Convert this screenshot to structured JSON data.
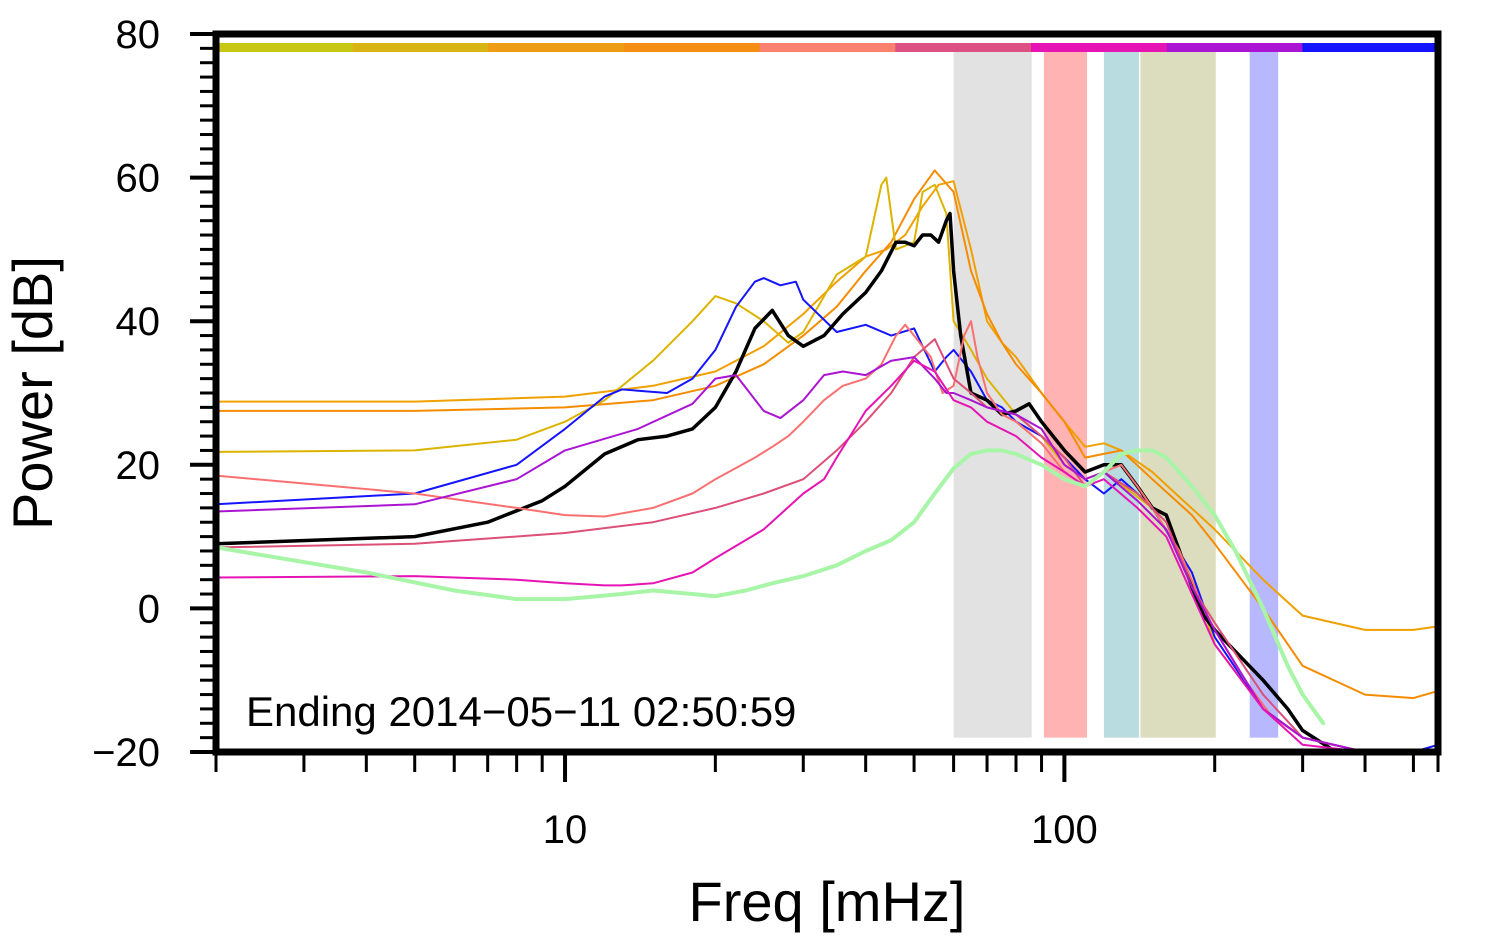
{
  "chart_data": {
    "type": "line",
    "xlabel": "Freq [mHz]",
    "ylabel": "Power [dB]",
    "x_scale": "log",
    "xlim": [
      2,
      560
    ],
    "ylim": [
      -20,
      80
    ],
    "x_tick_labels": [
      {
        "value": 10,
        "label": "10"
      },
      {
        "value": 100,
        "label": "100"
      }
    ],
    "y_tick_labels": [
      {
        "value": 80,
        "label": "80"
      },
      {
        "value": 60,
        "label": "60"
      },
      {
        "value": 40,
        "label": "40"
      },
      {
        "value": 20,
        "label": "20"
      },
      {
        "value": 0,
        "label": "0"
      },
      {
        "value": -20,
        "label": "−20"
      }
    ],
    "annotation": "Ending 2014−05−11 02:50:59",
    "color_bar": [
      "#c8c814",
      "#d8b414",
      "#ee9c14",
      "#f58c14",
      "#fa8070",
      "#dc5082",
      "#e614b4",
      "#aa14d2",
      "#1414ff"
    ],
    "bands": [
      {
        "x0": 60,
        "x1": 86,
        "color": "#d8d8d8"
      },
      {
        "x0": 91,
        "x1": 111,
        "color": "#ff9a9a"
      },
      {
        "x0": 120,
        "x1": 141,
        "color": "#a0d0d4"
      },
      {
        "x0": 142,
        "x1": 201,
        "color": "#d0d0a8"
      },
      {
        "x0": 235,
        "x1": 268,
        "color": "#a0a0ff"
      }
    ],
    "band_y_range": [
      -18,
      78
    ],
    "series": [
      {
        "color": "#f0a000",
        "width": 2,
        "x": [
          2,
          5,
          10,
          15,
          20,
          25,
          30,
          35,
          40,
          44,
          48,
          52,
          56,
          60,
          65,
          70,
          75,
          80,
          90,
          100,
          110,
          120,
          130,
          150,
          170,
          200,
          250,
          300,
          400,
          500,
          560
        ],
        "y": [
          28.8,
          28.8,
          29.5,
          31,
          33,
          36.5,
          41,
          45.5,
          49,
          50,
          52,
          56,
          59,
          59.5,
          50,
          40,
          37,
          35,
          30,
          26,
          22.5,
          23,
          22,
          19,
          15.5,
          11,
          4,
          -1,
          -3,
          -3,
          -2.5
        ]
      },
      {
        "color": "#f58c00",
        "width": 2,
        "x": [
          2,
          5,
          10,
          15,
          20,
          25,
          30,
          35,
          40,
          45,
          50,
          55,
          60,
          65,
          70,
          75,
          80,
          90,
          100,
          110,
          130,
          150,
          180,
          200,
          250,
          300,
          400,
          500,
          560
        ],
        "y": [
          27.5,
          27.5,
          28,
          29,
          31,
          34,
          38,
          42,
          47,
          51,
          57,
          61,
          58,
          47,
          41,
          37,
          34,
          30,
          26,
          21,
          22,
          18,
          13,
          9,
          0,
          -8,
          -12,
          -12.5,
          -11.5
        ]
      },
      {
        "color": "#dcb400",
        "width": 2,
        "x": [
          2,
          5,
          8,
          10,
          12,
          15,
          18,
          20,
          22,
          25,
          28,
          30,
          35,
          40,
          43,
          44,
          46,
          50,
          52,
          55,
          58,
          60,
          65,
          70,
          80,
          90,
          100,
          110,
          120,
          150,
          180,
          200,
          250,
          300,
          400,
          500,
          560
        ],
        "y": [
          21.8,
          22,
          23.5,
          26,
          29,
          34.5,
          40,
          43.5,
          42.5,
          40,
          37,
          38.5,
          46.5,
          49,
          59,
          60,
          50,
          51,
          58,
          59,
          55,
          40,
          36,
          32,
          27,
          24,
          20,
          18,
          19,
          14,
          5,
          -5,
          -14,
          -18,
          -20,
          -20,
          -20
        ]
      },
      {
        "color": "#1414ff",
        "width": 2,
        "x": [
          2,
          5,
          8,
          10,
          12,
          13,
          16,
          18,
          20,
          22,
          24,
          25,
          27,
          29,
          30,
          35,
          40,
          45,
          50,
          55,
          58,
          60,
          65,
          70,
          75,
          80,
          90,
          100,
          110,
          120,
          130,
          140,
          150,
          180,
          200,
          250,
          300,
          400,
          500,
          560
        ],
        "y": [
          14.5,
          16,
          20,
          25,
          29.5,
          30.5,
          30,
          32,
          36,
          42,
          45.5,
          46,
          45,
          45.5,
          43,
          38.5,
          39.5,
          38,
          39,
          33,
          35,
          36,
          33,
          29,
          28,
          26,
          24,
          21,
          18,
          16,
          18,
          16,
          14,
          5,
          -4,
          -14,
          -18,
          -20,
          -20,
          -19
        ]
      },
      {
        "color": "#000000",
        "width": 3.5,
        "x": [
          2,
          5,
          7,
          9,
          10,
          12,
          14,
          16,
          18,
          20,
          22,
          24,
          26,
          28,
          30,
          33,
          36,
          40,
          43,
          46,
          48,
          50,
          52,
          54,
          56,
          58,
          59,
          60,
          62,
          65,
          70,
          75,
          80,
          85,
          90,
          100,
          110,
          120,
          130,
          140,
          150,
          160,
          170,
          180,
          190,
          200,
          220,
          250,
          280,
          300,
          350,
          400,
          450,
          500,
          560
        ],
        "y": [
          9,
          10,
          12,
          15,
          17,
          21.5,
          23.5,
          24,
          25,
          28,
          33,
          39,
          41.5,
          38,
          36.5,
          38,
          41,
          44,
          47,
          51,
          51,
          50.5,
          52,
          52,
          51,
          54,
          55,
          47,
          38,
          30,
          29,
          27,
          27.5,
          28.5,
          26,
          22,
          19,
          20,
          20,
          17,
          14,
          13,
          8,
          3,
          -1,
          -3,
          -6,
          -10,
          -14,
          -17,
          -20,
          -21,
          -20,
          -20,
          -20
        ]
      },
      {
        "color": "#fa7070",
        "width": 2,
        "x": [
          2,
          5,
          8,
          10,
          12,
          15,
          18,
          20,
          24,
          26,
          28,
          30,
          33,
          36,
          40,
          43,
          46,
          48,
          50,
          54,
          57,
          60,
          63,
          65,
          67,
          70,
          75,
          80,
          90,
          100,
          110,
          120,
          130,
          140,
          150,
          170,
          190,
          200,
          230,
          260,
          300,
          400,
          500,
          560
        ],
        "y": [
          18.5,
          16,
          14,
          13,
          12.8,
          14,
          16,
          18,
          21,
          22.5,
          24,
          26,
          29,
          31,
          32,
          34,
          38,
          39.5,
          38,
          35,
          30,
          31,
          38,
          40,
          35,
          30,
          27,
          26,
          23,
          19,
          17,
          19,
          20,
          17,
          14,
          8,
          0,
          -3,
          -10,
          -15,
          -18,
          -20,
          -20,
          -20
        ]
      },
      {
        "color": "#dc5078",
        "width": 2,
        "x": [
          2,
          5,
          10,
          15,
          20,
          25,
          30,
          35,
          40,
          45,
          50,
          55,
          60,
          65,
          70,
          80,
          90,
          100,
          110,
          120,
          140,
          160,
          180,
          200,
          250,
          300,
          400,
          500,
          560
        ],
        "y": [
          8.5,
          9,
          10.5,
          12,
          14,
          16,
          18,
          22,
          26,
          30,
          35,
          37.5,
          32,
          30,
          28,
          27,
          24,
          21,
          17,
          19,
          16,
          12,
          3,
          -2,
          -12,
          -18,
          -20,
          -20,
          -20
        ]
      },
      {
        "color": "#aa14d2",
        "width": 2,
        "x": [
          2,
          5,
          8,
          10,
          14,
          18,
          20,
          22,
          25,
          27,
          30,
          33,
          36,
          40,
          45,
          50,
          55,
          58,
          60,
          65,
          70,
          80,
          90,
          100,
          110,
          120,
          140,
          160,
          180,
          200,
          250,
          300,
          400,
          500,
          560
        ],
        "y": [
          13.5,
          14.5,
          18,
          22,
          25,
          28.5,
          32,
          32.5,
          27.5,
          26.5,
          29,
          32.5,
          33,
          32.5,
          34.5,
          35,
          32,
          30,
          30,
          29,
          28,
          27,
          25,
          20,
          18,
          19,
          15,
          11,
          3,
          -3,
          -14,
          -18,
          -20,
          -20,
          -20
        ]
      },
      {
        "color": "#e614b4",
        "width": 2,
        "x": [
          2,
          5,
          8,
          10,
          12,
          13,
          15,
          18,
          20,
          25,
          30,
          33,
          35,
          38,
          40,
          45,
          50,
          55,
          60,
          65,
          70,
          80,
          90,
          100,
          110,
          120,
          140,
          160,
          180,
          200,
          250,
          300,
          400,
          500,
          560
        ],
        "y": [
          4.3,
          4.5,
          4,
          3.5,
          3.2,
          3.2,
          3.5,
          5,
          7,
          11,
          16,
          18,
          21,
          25,
          27.5,
          31,
          34.5,
          33,
          29,
          28,
          26,
          24,
          21,
          19,
          17,
          18,
          14,
          10,
          2,
          -5,
          -14,
          -19,
          -20,
          -20,
          -20
        ]
      },
      {
        "color": "#a8f5a8",
        "width": 4,
        "x": [
          2,
          4,
          6,
          8,
          10,
          13,
          15,
          18,
          20,
          23,
          26,
          30,
          35,
          40,
          45,
          50,
          55,
          60,
          65,
          70,
          75,
          80,
          90,
          100,
          110,
          120,
          130,
          140,
          150,
          160,
          180,
          200,
          220,
          250,
          280,
          300,
          330
        ],
        "y": [
          8.5,
          5,
          2.5,
          1.3,
          1.3,
          2,
          2.5,
          2,
          1.7,
          2.5,
          3.5,
          4.5,
          6,
          8,
          9.5,
          12,
          16,
          19.5,
          21.5,
          22,
          22,
          21.5,
          20,
          18,
          17,
          19,
          21.5,
          22,
          22,
          21,
          17,
          13,
          8,
          0,
          -8,
          -12,
          -16
        ]
      }
    ]
  }
}
